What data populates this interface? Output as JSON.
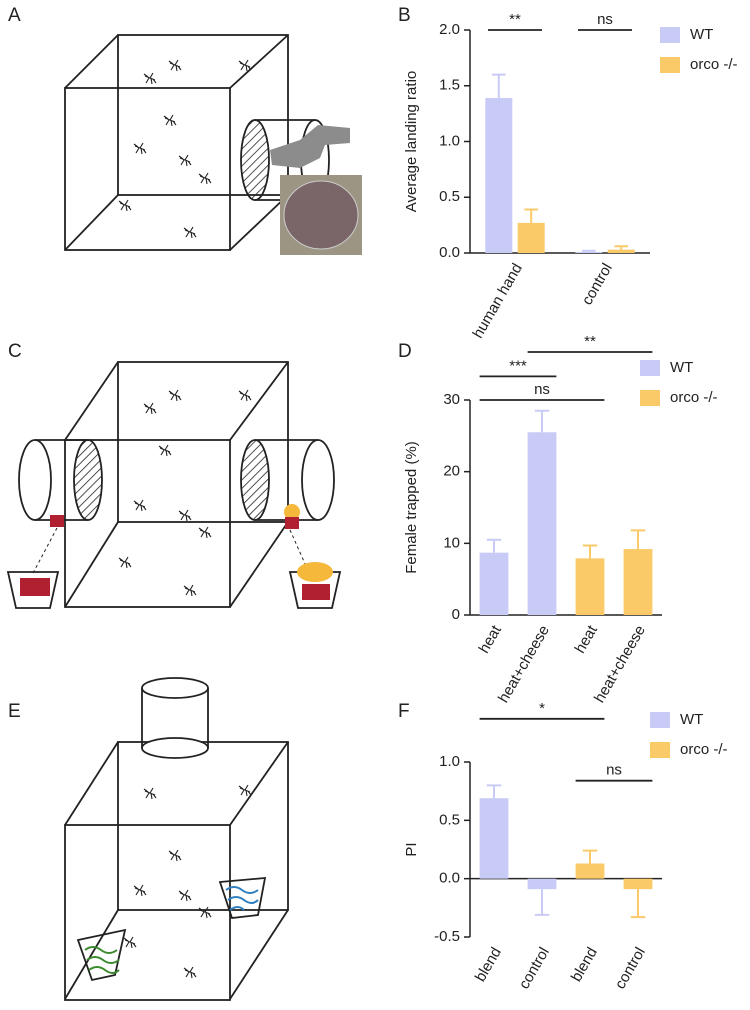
{
  "panel_labels": [
    "A",
    "B",
    "C",
    "D",
    "E",
    "F"
  ],
  "chart_data": [
    {
      "type": "bar",
      "ylabel": "Average landing ratio",
      "categories": [
        "human hand",
        "control"
      ],
      "grouped": true,
      "series": [
        {
          "name": "WT",
          "color": "#c9cbf7",
          "values": [
            1.39,
            0.01
          ],
          "errors": [
            0.21,
            0.01
          ]
        },
        {
          "name": "orco -/-",
          "color": "#fbca68",
          "values": [
            0.27,
            0.03
          ],
          "errors": [
            0.12,
            0.03
          ]
        }
      ],
      "ylim": [
        0,
        2
      ],
      "yticks": [
        {
          "value": 0,
          "label": "0.0"
        },
        {
          "value": 0.5,
          "label": "0.5"
        },
        {
          "value": 1,
          "label": "1.0"
        },
        {
          "value": 1.5,
          "label": "1.5"
        },
        {
          "value": 2,
          "label": "2.0"
        }
      ],
      "annotations": [
        {
          "text": "**",
          "from": 0,
          "to": 0,
          "y": 2
        },
        {
          "text": "ns",
          "from": 1,
          "to": 1,
          "y": 2
        }
      ]
    },
    {
      "type": "bar",
      "ylabel": "Female trapped (%)",
      "categories": [
        "heat",
        "heat+cheese",
        "heat",
        "heat+cheese"
      ],
      "grouped": false,
      "series": [
        {
          "name": "WT",
          "color": "#c9cbf7",
          "values": [
            8.7,
            25.5,
            null,
            null
          ],
          "errors": [
            1.8,
            3.0,
            null,
            null
          ]
        },
        {
          "name": "orco -/-",
          "color": "#fbca68",
          "values": [
            null,
            null,
            7.9,
            9.2
          ],
          "errors": [
            null,
            null,
            1.8,
            2.6
          ]
        }
      ],
      "ylim": [
        0,
        30
      ],
      "yticks": [
        0,
        10,
        20,
        30
      ],
      "annotations": [
        {
          "text": "ns",
          "from": 0,
          "to": 2,
          "y": 30
        },
        {
          "text": "***",
          "from": 0,
          "to": 1,
          "y": 33.3
        },
        {
          "text": "**",
          "from": 1,
          "to": 3,
          "y": 36.7
        }
      ]
    },
    {
      "type": "bar",
      "ylabel": "PI",
      "categories": [
        "blend",
        "control",
        "blend",
        "control"
      ],
      "grouped": false,
      "series": [
        {
          "name": "WT",
          "color": "#c9cbf7",
          "values": [
            0.69,
            -0.09,
            null,
            null
          ],
          "errors": [
            0.11,
            0.22,
            null,
            null
          ]
        },
        {
          "name": "orco -/-",
          "color": "#fbca68",
          "values": [
            null,
            null,
            0.13,
            -0.09
          ],
          "errors": [
            null,
            null,
            0.11,
            0.24
          ]
        }
      ],
      "ylim": [
        -0.5,
        1
      ],
      "yticks": [
        -0.5,
        {
          "value": 0,
          "label": "0.0"
        },
        {
          "value": 0.5,
          "label": "0.5"
        },
        {
          "value": 1,
          "label": "1.0"
        }
      ],
      "annotations": [
        {
          "text": "*",
          "from": 0,
          "to": 2,
          "y": 1.37
        },
        {
          "text": "ns",
          "from": 2,
          "to": 3,
          "y": 0.84
        }
      ]
    }
  ]
}
